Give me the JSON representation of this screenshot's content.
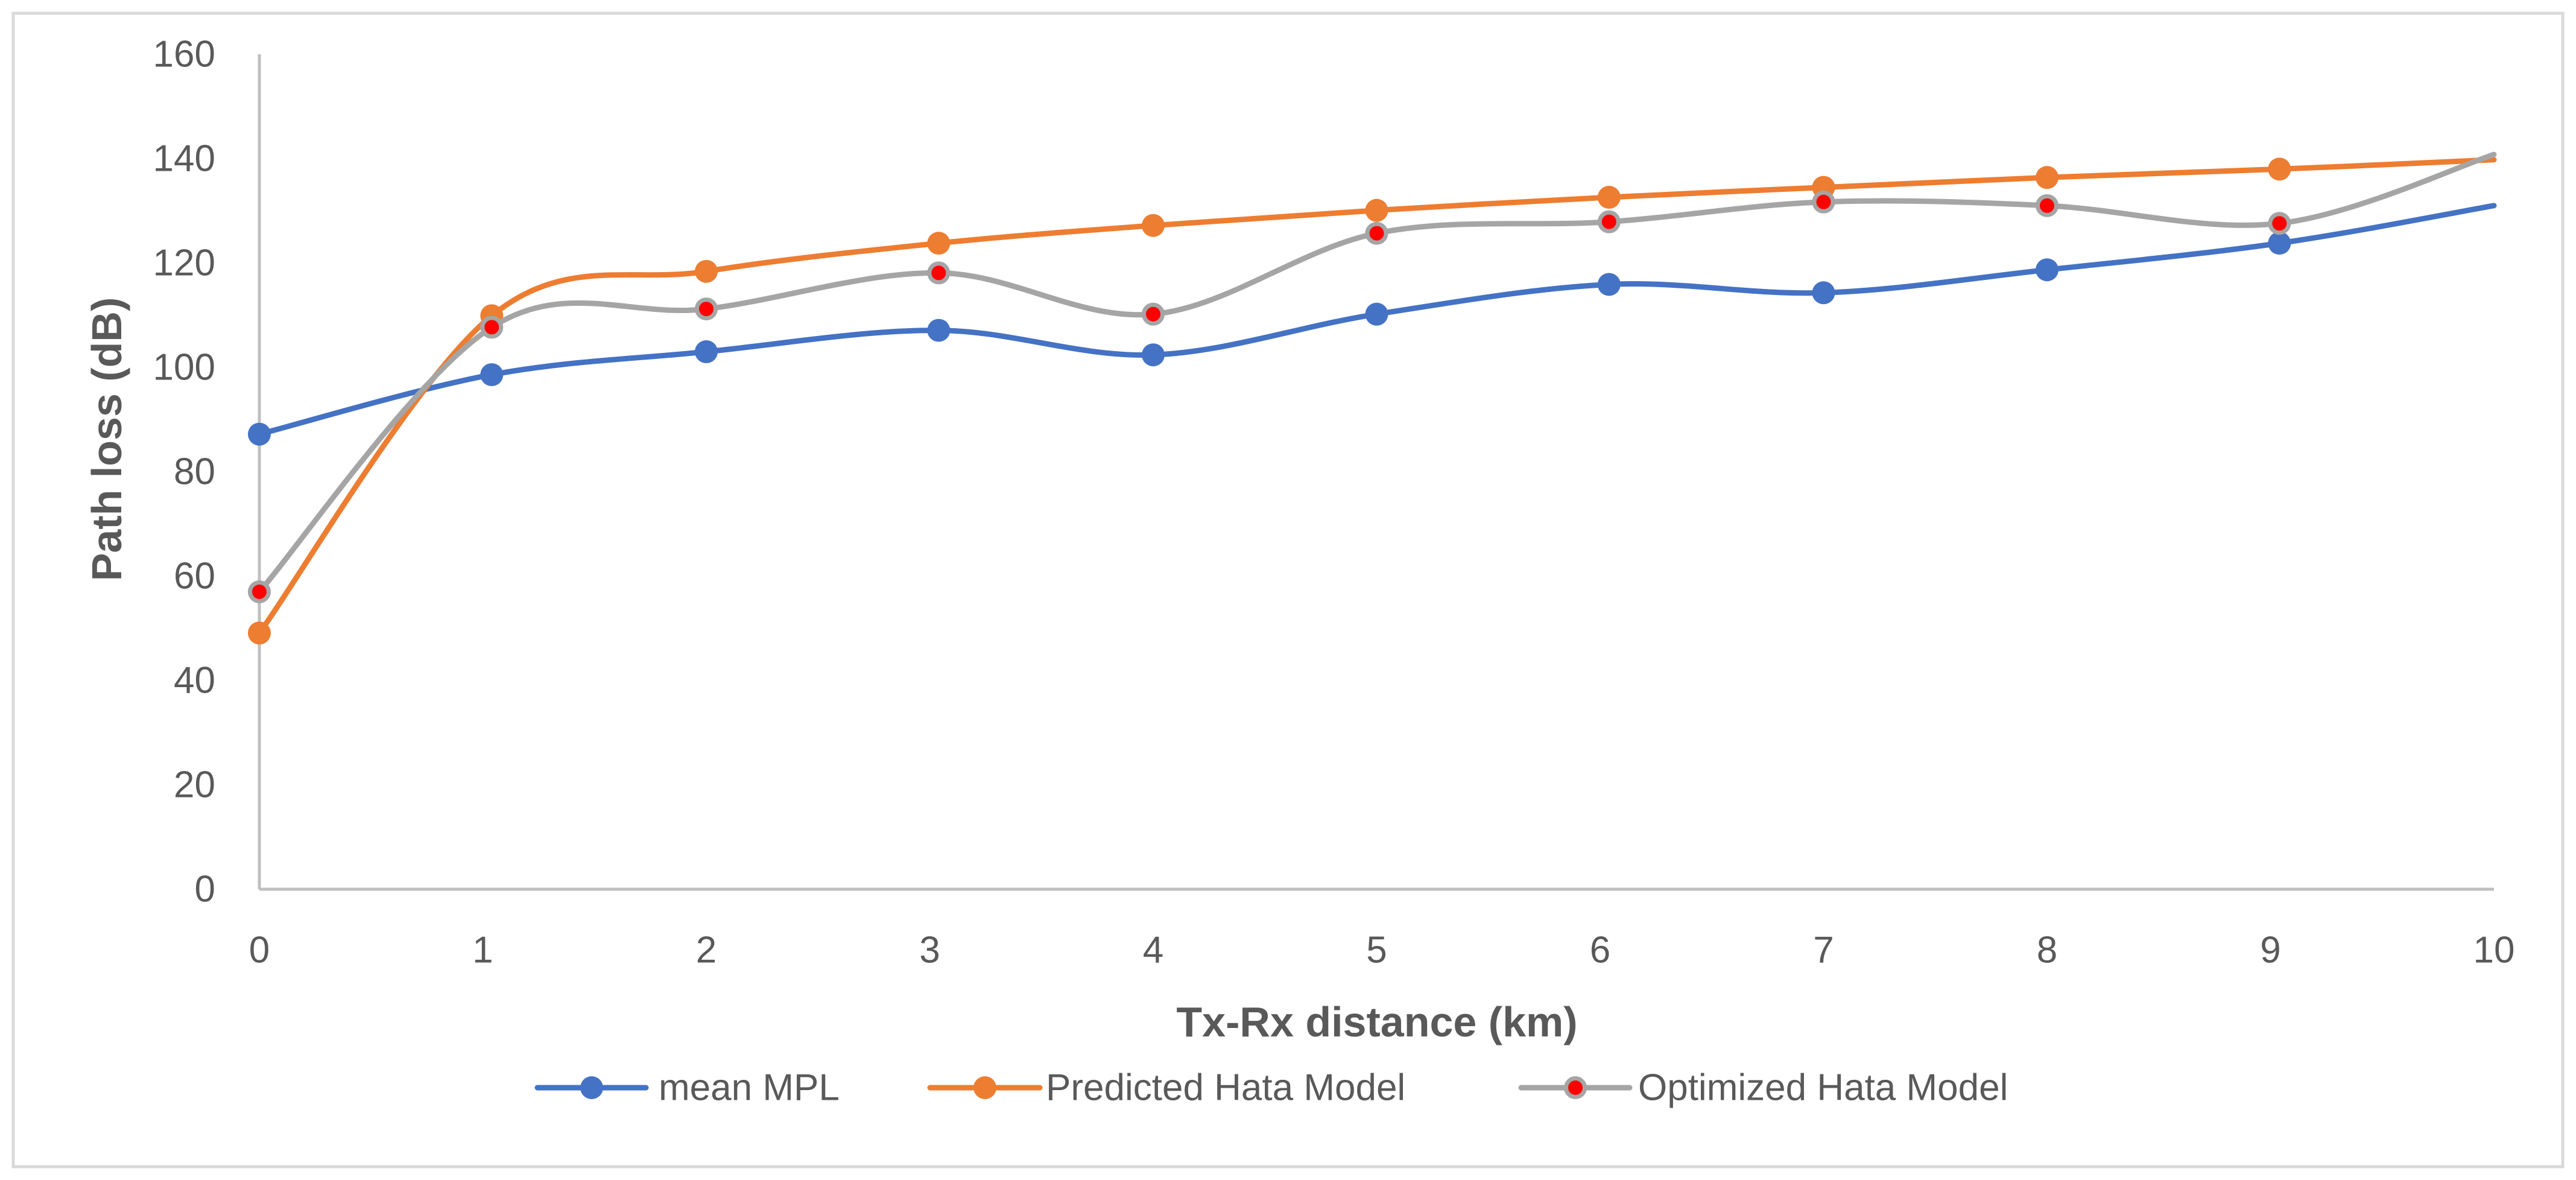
{
  "chart_data": {
    "type": "line",
    "title": "",
    "xlabel": "Tx-Rx distance (km)",
    "ylabel": "Path loss (dB)",
    "xlim": [
      0,
      10
    ],
    "ylim": [
      0,
      160
    ],
    "x_ticks": [
      "0",
      "1",
      "2",
      "3",
      "4",
      "5",
      "6",
      "7",
      "8",
      "9",
      "10"
    ],
    "y_ticks": [
      "0",
      "20",
      "40",
      "60",
      "80",
      "100",
      "120",
      "140",
      "160"
    ],
    "grid": false,
    "smooth": true,
    "legend_position": "bottom",
    "end_marker": false,
    "x": [
      0,
      1.04,
      2,
      3.04,
      4,
      5,
      6.04,
      7,
      8,
      9.04,
      10
    ],
    "series": [
      {
        "name": "mean MPL",
        "color": "#4472C4",
        "marker": "circle",
        "values": [
          87.2,
          98.6,
          103.0,
          107.1,
          102.4,
          110.2,
          115.9,
          114.3,
          118.7,
          123.8,
          131.0
        ]
      },
      {
        "name": "Predicted Hata Model",
        "color": "#ED7D31",
        "marker": "circle",
        "values": [
          49.1,
          109.9,
          118.4,
          123.8,
          127.2,
          130.1,
          132.6,
          134.5,
          136.4,
          138.0,
          139.8
        ]
      },
      {
        "name": "Optimized Hata Model",
        "color": "#A5A5A5",
        "marker": "circle",
        "marker_fill": "#FF0000",
        "values": [
          57.0,
          107.7,
          111.2,
          118.1,
          110.2,
          125.7,
          127.9,
          131.7,
          131.0,
          127.6,
          140.8
        ]
      }
    ]
  }
}
